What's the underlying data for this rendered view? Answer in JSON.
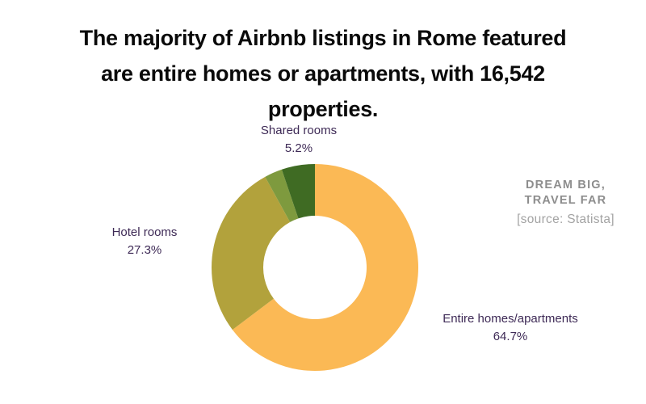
{
  "header": {
    "title_lines": [
      "The majority of Airbnb listings in Rome featured",
      "are entire homes or apartments, with 16,542",
      "properties."
    ]
  },
  "callouts": {
    "shared": {
      "label": "Shared rooms",
      "pct": "5.2%"
    },
    "hotel": {
      "label": "Hotel rooms",
      "pct": "27.3%"
    },
    "entire": {
      "label": "Entire homes/apartments",
      "pct": "64.7%"
    }
  },
  "branding": {
    "logo_line1": "DREAM BIG,",
    "logo_line2": "TRAVEL FAR",
    "source": "[source: Statista]"
  },
  "colors": {
    "title_text": "#0A0A0A",
    "label_text": "#3E2A56",
    "logo_text": "#8D8D8D",
    "source_text": "#A3A3A3",
    "background": "#FFFFFF"
  },
  "chart_data": {
    "type": "pie",
    "subtype": "donut",
    "unit": "percent",
    "direction": "clockwise",
    "start_angle_deg": 0,
    "inner_radius_ratio": 0.5,
    "legend_position": "outside-callout-labels",
    "segments": [
      {
        "label": "Entire homes/apartments",
        "value": 64.7,
        "color": "#FBB955",
        "label_visible": true
      },
      {
        "label": "Hotel rooms",
        "value": 27.3,
        "color": "#B2A23C",
        "label_visible": true
      },
      {
        "label": "",
        "value": 2.8,
        "color": "#7E9A3E",
        "label_visible": false
      },
      {
        "label": "Shared rooms",
        "value": 5.2,
        "color": "#3F6B23",
        "label_visible": true
      }
    ]
  }
}
